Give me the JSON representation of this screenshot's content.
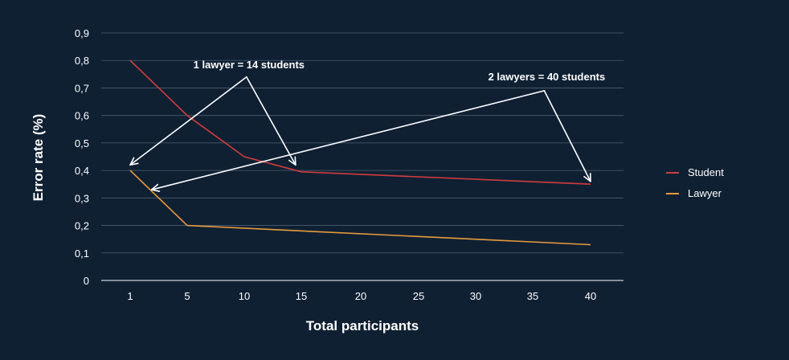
{
  "chart_data": {
    "type": "line",
    "xlabel": "Total participants",
    "ylabel": "Error rate (%)",
    "categories": [
      "1",
      "5",
      "10",
      "15",
      "20",
      "25",
      "30",
      "35",
      "40"
    ],
    "x_ticks": [
      1,
      5,
      10,
      15,
      20,
      25,
      30,
      35,
      40
    ],
    "y_ticks": [
      "0",
      "0,1",
      "0,2",
      "0,3",
      "0,4",
      "0,5",
      "0,6",
      "0,7",
      "0,8",
      "0,9"
    ],
    "ylim": [
      0,
      0.9
    ],
    "grid": true,
    "legend_position": "right",
    "series": [
      {
        "name": "Student",
        "color": "#d23c3c",
        "points": [
          [
            1,
            0.8
          ],
          [
            5,
            0.6
          ],
          [
            10,
            0.45
          ],
          [
            15,
            0.395
          ],
          [
            40,
            0.35
          ]
        ]
      },
      {
        "name": "Lawyer",
        "color": "#e89a3c",
        "points": [
          [
            1,
            0.4
          ],
          [
            5,
            0.2
          ],
          [
            40,
            0.13
          ]
        ]
      }
    ],
    "annotations": [
      {
        "text": "1 lawyer = 14 students",
        "arrows": [
          [
            1,
            0.42
          ],
          [
            14.5,
            0.42
          ]
        ],
        "apex": [
          10.2,
          0.74
        ]
      },
      {
        "text": "2 lawyers = 40 students",
        "arrows": [
          [
            2.5,
            0.33
          ],
          [
            40,
            0.36
          ]
        ],
        "apex": [
          36,
          0.69
        ]
      }
    ]
  },
  "colors": {
    "background": "#0f2033",
    "grid": "#4d5e70",
    "arrow": "#ffffff",
    "text": "#ffffff"
  }
}
